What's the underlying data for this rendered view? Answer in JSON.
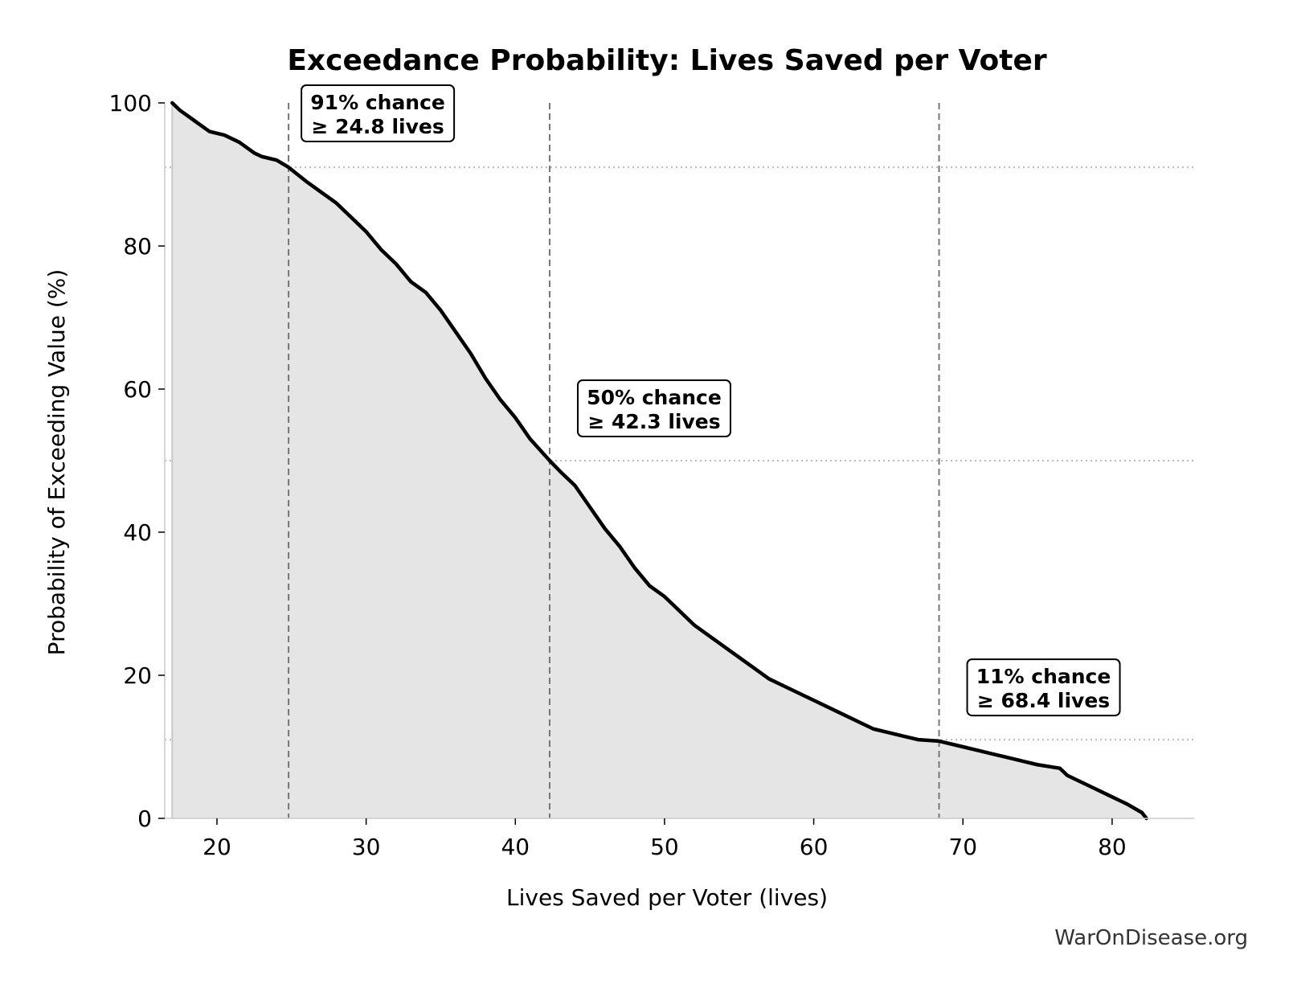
{
  "chart_data": {
    "type": "area",
    "title": "Exceedance Probability: Lives Saved per Voter",
    "xlabel": "Lives Saved per Voter (lives)",
    "ylabel": "Probability of Exceeding Value (%)",
    "xlim": [
      16.5,
      85.5
    ],
    "ylim": [
      0,
      100
    ],
    "xticks": [
      20,
      30,
      40,
      50,
      60,
      70,
      80
    ],
    "yticks": [
      0,
      20,
      40,
      60,
      80,
      100
    ],
    "grid": false,
    "series": [
      {
        "x": [
          17.0,
          17.5,
          18.5,
          19.5,
          20.5,
          21.5,
          22.5,
          23.0,
          24.0,
          24.8,
          26.0,
          27.0,
          28.0,
          29.0,
          30.0,
          31.0,
          32.0,
          33.0,
          34.0,
          35.0,
          36.0,
          37.0,
          38.0,
          39.0,
          40.0,
          41.0,
          42.3,
          43.0,
          44.0,
          45.0,
          46.0,
          47.0,
          48.0,
          49.0,
          50.0,
          51.0,
          52.0,
          53.0,
          54.0,
          55.0,
          56.0,
          57.0,
          58.0,
          59.0,
          60.0,
          61.0,
          62.0,
          63.0,
          64.0,
          65.0,
          66.0,
          67.0,
          68.4,
          70.0,
          71.0,
          72.0,
          73.0,
          74.0,
          75.0,
          76.5,
          77.0,
          78.0,
          79.0,
          80.0,
          81.0,
          82.0,
          82.3
        ],
        "y": [
          100.0,
          99.0,
          97.5,
          96.0,
          95.5,
          94.5,
          93.0,
          92.5,
          92.0,
          91.0,
          89.0,
          87.5,
          86.0,
          84.0,
          82.0,
          79.5,
          77.5,
          75.0,
          73.5,
          71.0,
          68.0,
          65.0,
          61.5,
          58.5,
          56.0,
          53.0,
          50.0,
          48.5,
          46.5,
          43.5,
          40.5,
          38.0,
          35.0,
          32.5,
          31.0,
          29.0,
          27.0,
          25.5,
          24.0,
          22.5,
          21.0,
          19.5,
          18.5,
          17.5,
          16.5,
          15.5,
          14.5,
          13.5,
          12.5,
          12.0,
          11.5,
          11.0,
          10.8,
          10.0,
          9.5,
          9.0,
          8.5,
          8.0,
          7.5,
          7.0,
          6.0,
          5.0,
          4.0,
          3.0,
          2.0,
          0.8,
          0.0
        ]
      }
    ],
    "percentiles": [
      {
        "x": 24.8,
        "y": 91,
        "label_line1": "91% chance",
        "label_line2": "≥ 24.8 lives",
        "label_pos": "top-right"
      },
      {
        "x": 42.3,
        "y": 50,
        "label_line1": "50% chance",
        "label_line2": "≥ 42.3 lives",
        "label_pos": "upper-right"
      },
      {
        "x": 68.4,
        "y": 11,
        "label_line1": "11% chance",
        "label_line2": "≥ 68.4 lives",
        "label_pos": "upper-right"
      }
    ],
    "colors": {
      "line": "#000000",
      "fill": "#e5e5e5",
      "ref_line": "#777777",
      "ref_hline": "#bbbbbb"
    }
  },
  "watermark": "WarOnDisease.org"
}
